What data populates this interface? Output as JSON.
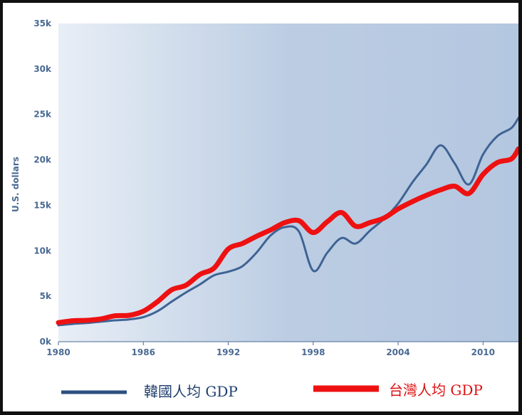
{
  "chart_data": {
    "type": "line",
    "ylabel": "U.S. dollars",
    "xlim": [
      1980,
      2012.5
    ],
    "ylim": [
      0,
      35000
    ],
    "x_ticks": [
      "1980",
      "1986",
      "1992",
      "1998",
      "2004",
      "2010"
    ],
    "y_ticks": [
      "0k",
      "5k",
      "10k",
      "15k",
      "20k",
      "25k",
      "30k",
      "35k"
    ],
    "grid": false,
    "legend_position": "bottom",
    "series": [
      {
        "name": "韓國人均 GDP",
        "color": "#3f6394",
        "x": [
          1980,
          1981,
          1982,
          1983,
          1984,
          1985,
          1986,
          1987,
          1988,
          1989,
          1990,
          1991,
          1992,
          1993,
          1994,
          1995,
          1996,
          1997,
          1998,
          1999,
          2000,
          2001,
          2002,
          2003,
          2004,
          2005,
          2006,
          2007,
          2008,
          2009,
          2010,
          2011,
          2012,
          2012.5
        ],
        "values": [
          1800,
          1950,
          2050,
          2200,
          2350,
          2450,
          2700,
          3350,
          4400,
          5400,
          6300,
          7300,
          7700,
          8300,
          9800,
          11700,
          12600,
          12100,
          7800,
          9800,
          11400,
          10800,
          12200,
          13500,
          15200,
          17500,
          19500,
          21600,
          19600,
          17300,
          20600,
          22600,
          23500,
          24600
        ]
      },
      {
        "name": "台灣人均 GDP",
        "color": "#ee1111",
        "x": [
          1980,
          1981,
          1982,
          1983,
          1984,
          1985,
          1986,
          1987,
          1988,
          1989,
          1990,
          1991,
          1992,
          1993,
          1994,
          1995,
          1996,
          1997,
          1998,
          1999,
          2000,
          2001,
          2002,
          2003,
          2004,
          2005,
          2006,
          2007,
          2008,
          2009,
          2010,
          2011,
          2012,
          2012.5
        ],
        "values": [
          2100,
          2300,
          2350,
          2500,
          2850,
          2900,
          3350,
          4400,
          5700,
          6200,
          7400,
          8100,
          10200,
          10800,
          11600,
          12300,
          13100,
          13300,
          12000,
          13200,
          14200,
          12700,
          13100,
          13600,
          14600,
          15400,
          16100,
          16700,
          17100,
          16300,
          18400,
          19700,
          20100,
          21200
        ]
      }
    ]
  }
}
